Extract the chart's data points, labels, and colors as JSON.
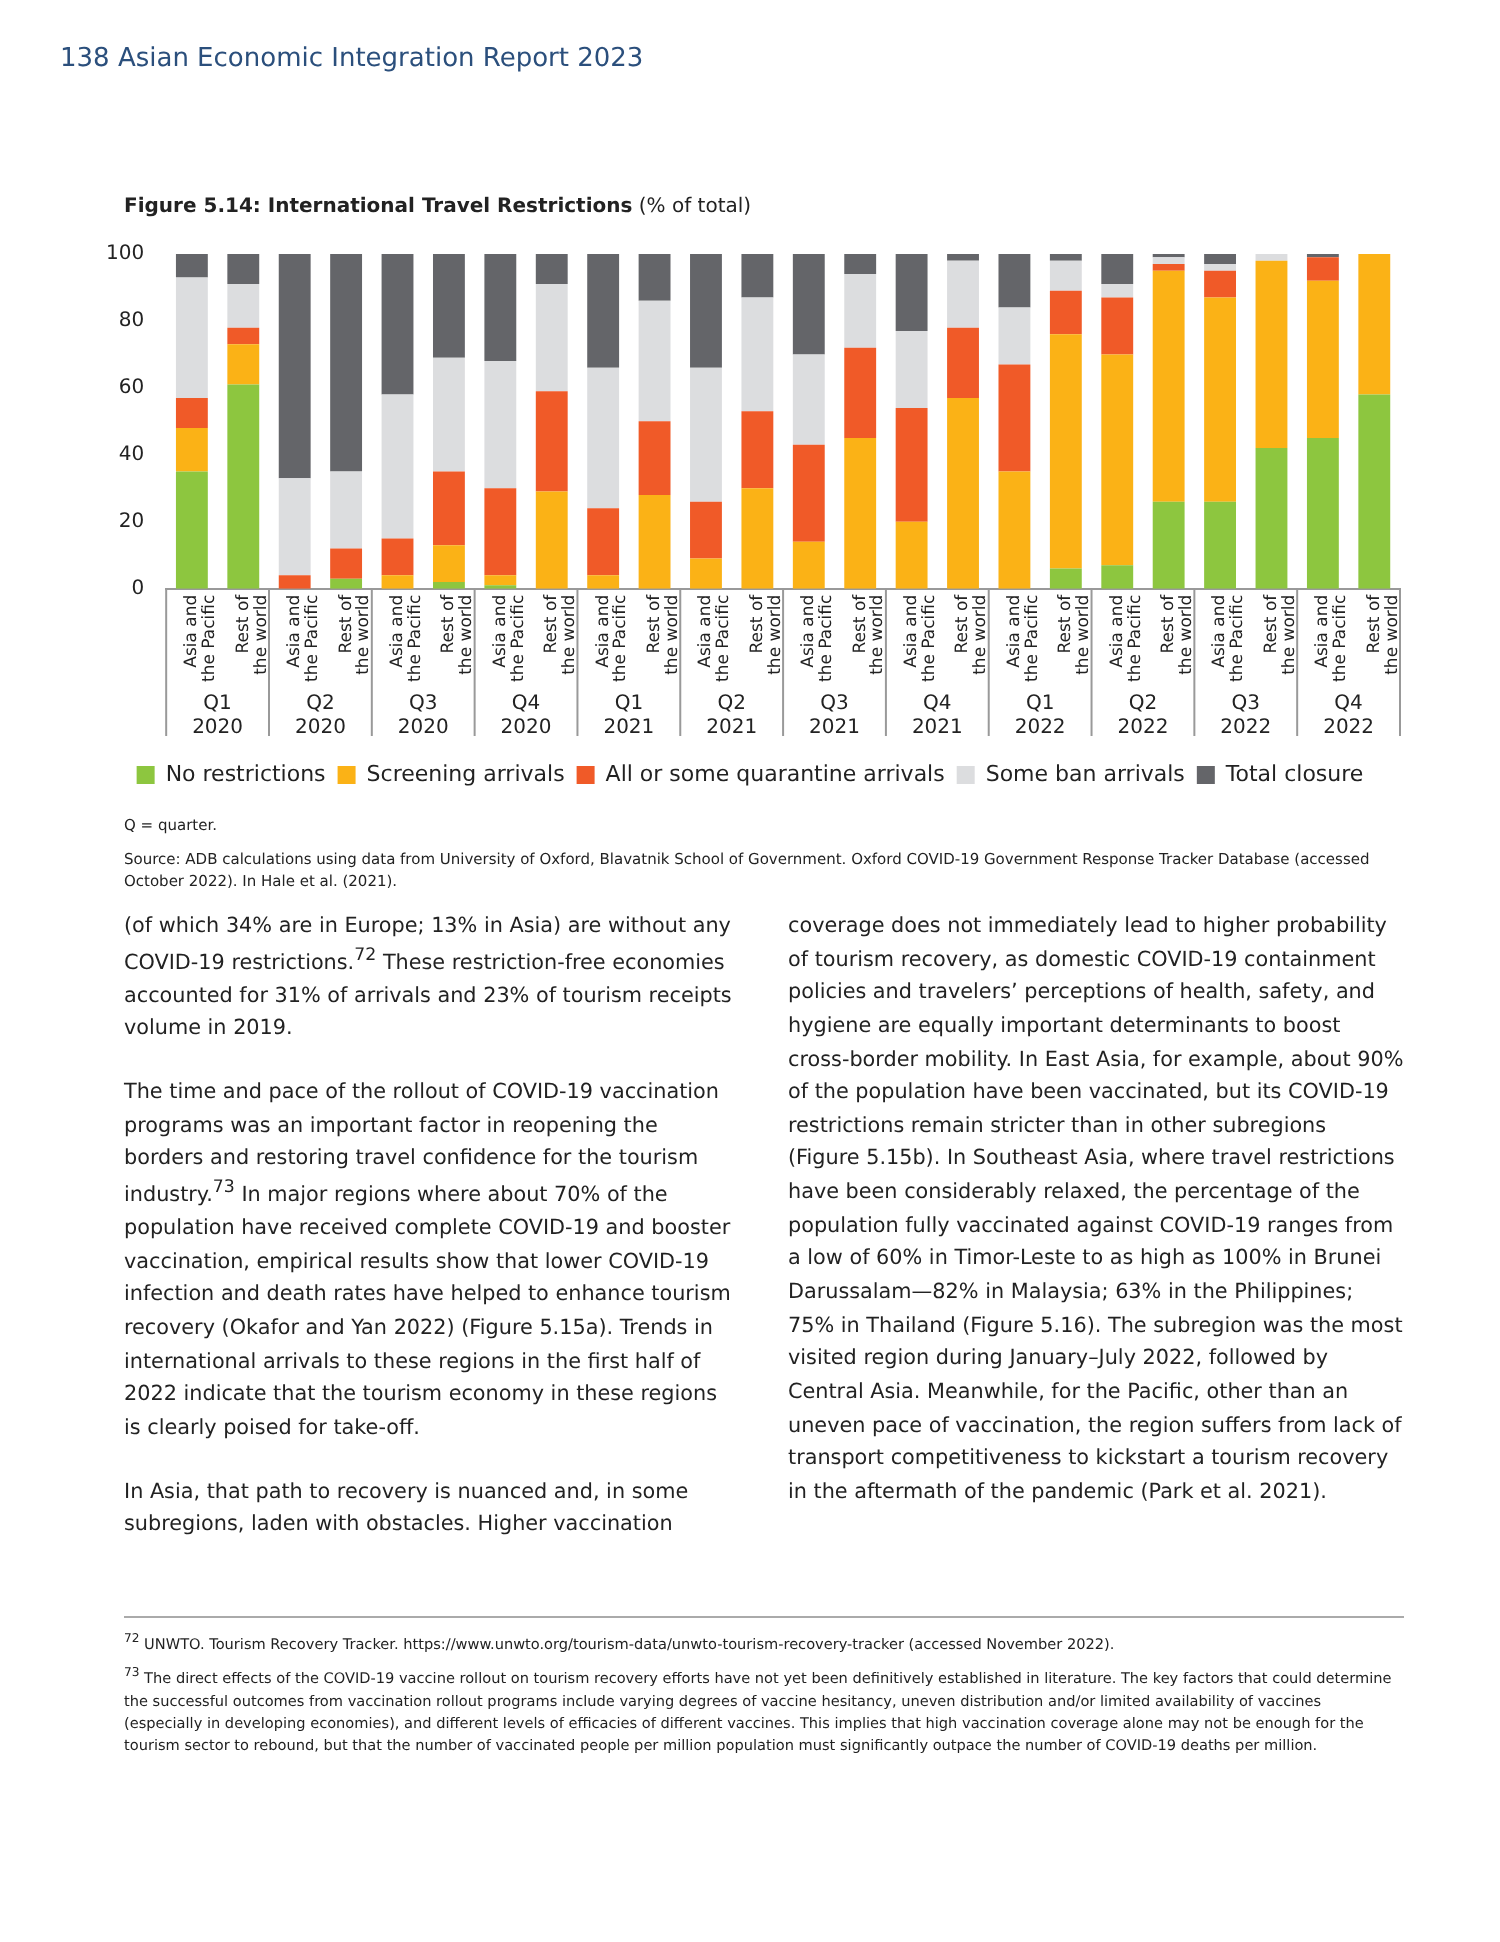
{
  "chart_data": {
    "type": "bar",
    "stacked": true,
    "title": "Figure 5.14: International Travel Restrictions",
    "subtitle": "(% of total)",
    "categories": [
      "Asia and the Pacific",
      "Rest of the world",
      "Asia and the Pacific",
      "Rest of the world",
      "Asia and the Pacific",
      "Rest of the world",
      "Asia and the Pacific",
      "Rest of the world",
      "Asia and the Pacific",
      "Rest of the world",
      "Asia and the Pacific",
      "Rest of the world",
      "Asia and the Pacific",
      "Rest of the world",
      "Asia and the Pacific",
      "Rest of the world",
      "Asia and the Pacific",
      "Rest of the world",
      "Asia and the Pacific",
      "Rest of the world",
      "Asia and the Pacific",
      "Rest of the world",
      "Asia and the Pacific",
      "Rest of the world"
    ],
    "series": [
      {
        "name": "No restrictions",
        "color": "#8dc63f",
        "values": [
          35,
          61,
          0,
          3,
          0,
          2,
          1,
          0,
          0,
          0,
          0,
          0,
          0,
          0,
          0,
          0,
          0,
          6,
          7,
          26,
          26,
          42,
          45,
          58
        ]
      },
      {
        "name": "Screening arrivals",
        "color": "#fbb216",
        "values": [
          13,
          12,
          0,
          0,
          4,
          11,
          3,
          29,
          4,
          28,
          9,
          30,
          14,
          45,
          20,
          57,
          35,
          70,
          63,
          69,
          61,
          56,
          47,
          42
        ]
      },
      {
        "name": "All or some quarantine arrivals",
        "color": "#f05a28",
        "values": [
          9,
          5,
          4,
          9,
          11,
          22,
          26,
          30,
          20,
          22,
          17,
          23,
          29,
          27,
          34,
          21,
          32,
          13,
          17,
          2,
          8,
          0,
          7,
          0
        ]
      },
      {
        "name": "Some ban arrivals",
        "color": "#dcdddf",
        "values": [
          36,
          13,
          29,
          23,
          43,
          34,
          38,
          32,
          42,
          36,
          40,
          34,
          27,
          22,
          23,
          20,
          17,
          9,
          4,
          2,
          2,
          2,
          0,
          0
        ]
      },
      {
        "name": "Total closure",
        "color": "#646569",
        "values": [
          7,
          9,
          67,
          65,
          42,
          31,
          32,
          9,
          34,
          14,
          34,
          13,
          30,
          6,
          23,
          2,
          16,
          2,
          9,
          1,
          3,
          0,
          1,
          0
        ]
      }
    ],
    "ylim": [
      0,
      100
    ],
    "yticks": [
      0,
      20,
      40,
      60,
      80,
      100
    ],
    "grid": false,
    "legend": "bottom",
    "annotations": [
      "Q1 2020",
      "Q2 2020",
      "Q3 2020",
      "Q4 2020",
      "Q1 2021",
      "Q2 2021",
      "Q3 2021",
      "Q4 2021",
      "Q1 2022",
      "Q2 2022",
      "Q3 2022",
      "Q4 2022",
      "Q = quarter.",
      "Source: ADB calculations using data from University of Oxford, Blavatnik School of Government. Oxford COVID-19 Government Response Tracker Database (accessed October 2022). In Hale et al. (2021).",
      "138 Asian Economic Integration Report 2023",
      "(of which 34% are in Europe; 13% in Asia) are without any COVID-19 restrictions.$^{72}$ These restriction-free economies accounted for 31% of arrivals and 23% of tourism receipts volume in 2019.",
      "The time and pace of the rollout of COVID-19 vaccination programs was an important factor in reopening the borders and restoring travel confidence for the tourism industry.$^{73}$ In major regions where about 70% of the population have received complete COVID-19 and booster vaccination, empirical results show that lower COVID-19 infection and death rates have helped to enhance tourism recovery (Okafor and Yan 2022) (Figure 5.15a). Trends in international arrivals to these regions in the first half of 2022 indicate that the tourism economy in these regions is clearly poised for take-off.",
      "In Asia, that path to recovery is nuanced and, in some subregions, laden with obstacles. Higher vaccination coverage does not immediately lead to higher probability of tourism recovery, as domestic COVID-19 containment policies and travelers’ perceptions of health, safety, and hygiene are equally important determinants to boost cross-border mobility. In East Asia, for example, about 90% of the population have been vaccinated, but its COVID-19 restrictions remain stricter than in other subregions (Figure 5.15b). In Southeast Asia, where travel restrictions have been considerably relaxed, the percentage of the population fully vaccinated against COVID-19 ranges from a low of 60% in Timor-Leste to as high as 100% in Brunei Darussalam—82% in Malaysia; 63% in the Philippines; 75% in Thailand (Figure 5.16). The subregion was the most visited region during January–July 2022, followed by Central Asia. Meanwhile, for the Pacific, other than an uneven pace of vaccination, the region suffers from lack of transport competitiveness to kickstart a tourism recovery in the aftermath of the pandemic (Park et al. 2021).",
      "$^{72}$ UNWTO. Tourism Recovery Tracker. https://www.unwto.org/tourism-data/unwto-tourism-recovery-tracker (accessed November 2022).",
      "$^{73}$ The direct effects of the COVID-19 vaccine rollout on tourism recovery efforts have not yet been definitively established in literature. The key factors that could determine the successful outcomes from vaccination rollout programs include varying degrees of vaccine hesitancy, uneven distribution and/or limited availability of vaccines (especially in developing economies), and different levels of efficacies of different vaccines. This implies that high vaccination coverage alone may not be enough for the tourism sector to rebound, but that the number of vaccinated people per million population must significantly outpace the number of COVID-19 deaths per million."
    ]
  }
}
